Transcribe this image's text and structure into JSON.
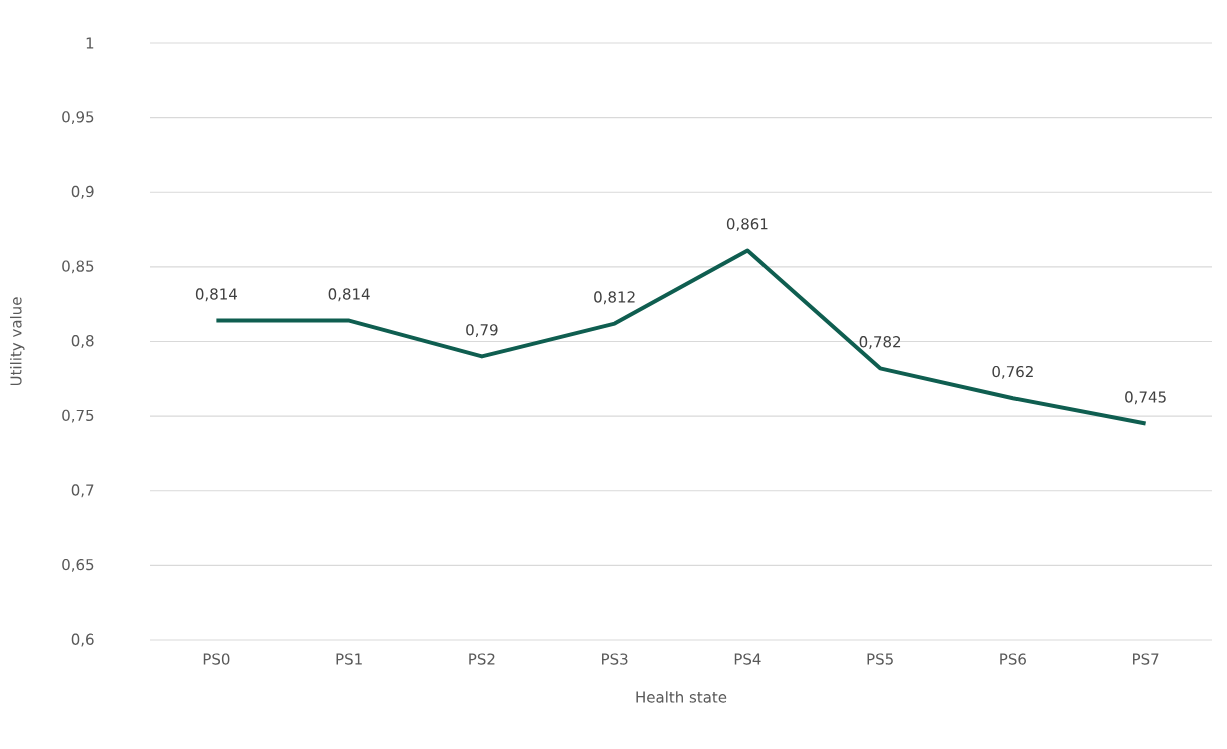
{
  "chart_data": {
    "type": "line",
    "xlabel": "Health state",
    "ylabel": "Utility value",
    "categories": [
      "PS0",
      "PS1",
      "PS2",
      "PS3",
      "PS4",
      "PS5",
      "PS6",
      "PS7"
    ],
    "values": [
      0.814,
      0.814,
      0.79,
      0.812,
      0.861,
      0.782,
      0.762,
      0.745
    ],
    "value_labels": [
      "0,814",
      "0,814",
      "0,79",
      "0,812",
      "0,861",
      "0,782",
      "0,762",
      "0,745"
    ],
    "color": "#0f5e50",
    "ylim": [
      0.6,
      1
    ],
    "yticks": [
      {
        "value": 0.6,
        "label": "0,6"
      },
      {
        "value": 0.65,
        "label": "0,65"
      },
      {
        "value": 0.7,
        "label": "0,7"
      },
      {
        "value": 0.75,
        "label": "0,75"
      },
      {
        "value": 0.8,
        "label": "0,8"
      },
      {
        "value": 0.85,
        "label": "0,85"
      },
      {
        "value": 0.9,
        "label": "0,9"
      },
      {
        "value": 0.95,
        "label": "0,95"
      },
      {
        "value": 1,
        "label": "1"
      }
    ],
    "grid": "y"
  }
}
